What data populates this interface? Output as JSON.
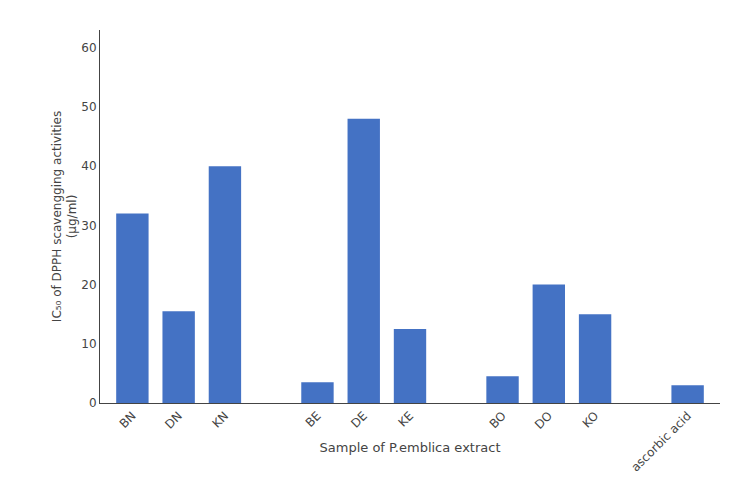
{
  "chart_data": {
    "type": "bar",
    "categories": [
      "BN",
      "DN",
      "KN",
      null,
      "BE",
      "DE",
      "KE",
      null,
      "BO",
      "DO",
      "KO",
      null,
      "ascorbic acid"
    ],
    "values": [
      32,
      15.5,
      40,
      null,
      3.5,
      48,
      12.5,
      null,
      4.5,
      20,
      15,
      null,
      3
    ],
    "color": "#4472C4",
    "xlabel": "Sample of P.emblica extract",
    "ylabel": "IC₅₀ of DPPH scavengging activities\n(μg/ml)",
    "ylim": [
      0,
      63
    ],
    "yticks": [
      0,
      10,
      20,
      30,
      40,
      50,
      60
    ],
    "grid": false
  }
}
